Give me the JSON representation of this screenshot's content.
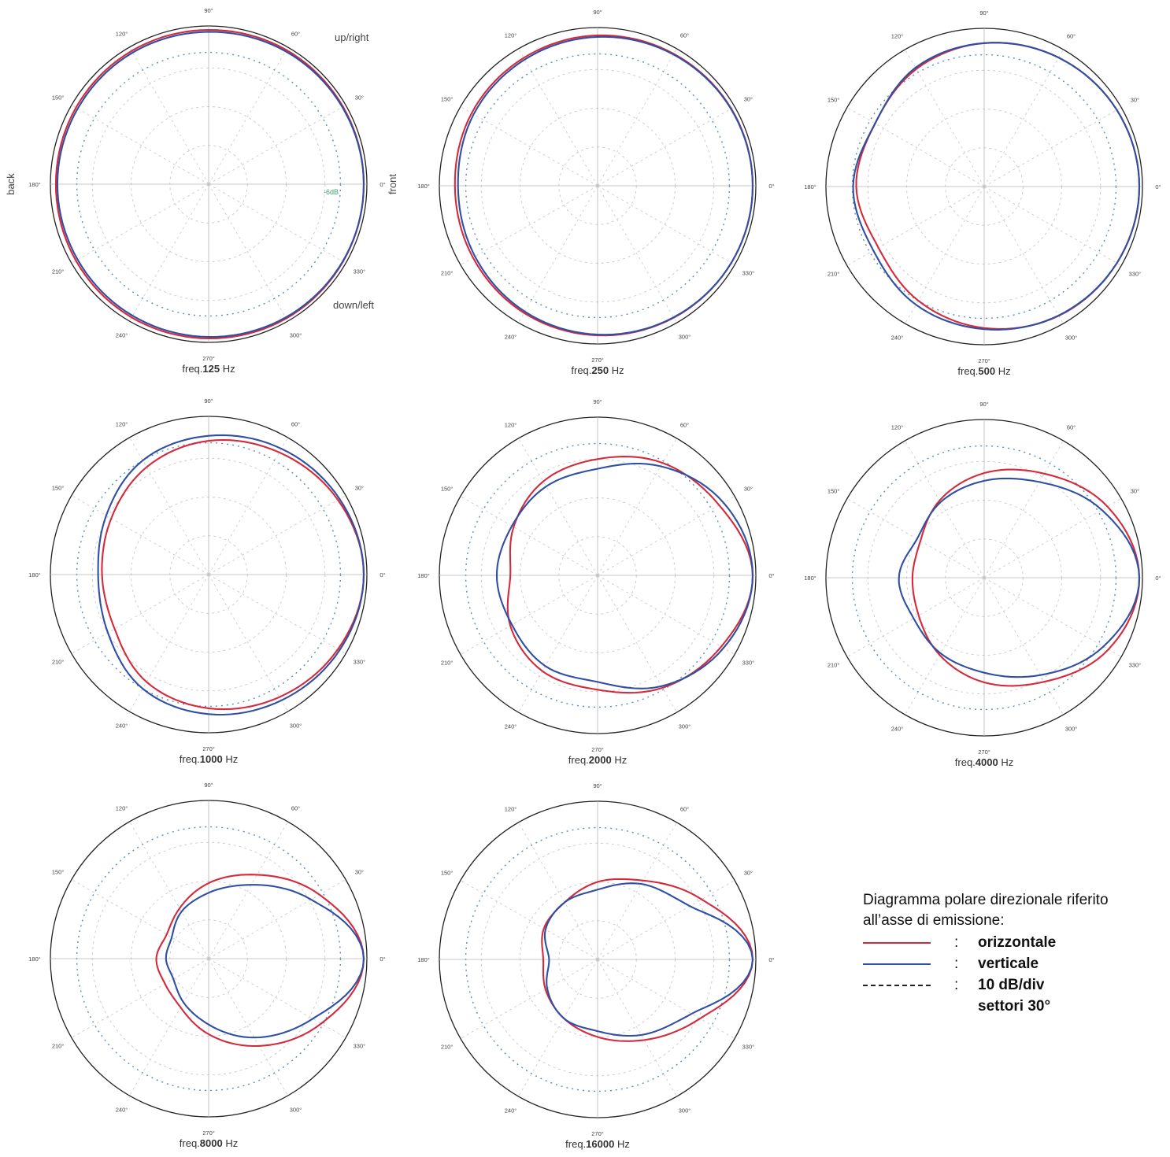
{
  "chart_data": [
    {
      "type": "polar",
      "caption_prefix": "freq.",
      "freq": "125",
      "unit": "Hz",
      "angle_labels": [
        "0°",
        "30°",
        "60°",
        "90°",
        "120°",
        "150°",
        "180°",
        "210°",
        "240°",
        "270°",
        "300°",
        "330°"
      ],
      "annotations": {
        "back": "back",
        "front": "front",
        "up": "up/right",
        "down": "down/left",
        "ref": "-6dB"
      },
      "r_unit": "dB",
      "r_range": [
        -40,
        0
      ],
      "series": [
        {
          "color": "#d42a3c",
          "angles_deg": [
            0,
            30,
            60,
            90,
            120,
            150,
            180,
            210,
            240,
            270,
            300,
            330
          ],
          "values": [
            0,
            0,
            0,
            -0.2,
            -0.3,
            -0.5,
            -0.6,
            -0.5,
            -0.3,
            -0.2,
            0,
            0
          ]
        },
        {
          "color": "#2f4fa3",
          "angles_deg": [
            0,
            30,
            60,
            90,
            120,
            150,
            180,
            210,
            240,
            270,
            300,
            330
          ],
          "values": [
            0,
            -0.2,
            -0.4,
            -0.7,
            -0.8,
            -1.0,
            -1.0,
            -1.0,
            -0.8,
            -0.6,
            -0.3,
            -0.1
          ]
        }
      ]
    },
    {
      "type": "polar",
      "caption_prefix": "freq.",
      "freq": "250",
      "unit": "Hz",
      "angle_labels": [
        "0°",
        "30°",
        "60°",
        "90°",
        "120°",
        "150°",
        "180°",
        "210°",
        "240°",
        "270°",
        "300°",
        "330°"
      ],
      "r_unit": "dB",
      "r_range": [
        -40,
        0
      ],
      "series": [
        {
          "color": "#d42a3c",
          "angles_deg": [
            0,
            30,
            60,
            90,
            120,
            150,
            180,
            210,
            240,
            270,
            300,
            330
          ],
          "values": [
            0,
            -0.2,
            -0.7,
            -1.2,
            -1.9,
            -2.5,
            -3.2,
            -2.9,
            -2.1,
            -1.4,
            -0.7,
            -0.2
          ]
        },
        {
          "color": "#2f4fa3",
          "angles_deg": [
            0,
            30,
            60,
            90,
            120,
            150,
            180,
            210,
            240,
            270,
            300,
            330
          ],
          "values": [
            0,
            -0.3,
            -0.9,
            -1.6,
            -2.4,
            -3.1,
            -4.0,
            -3.5,
            -2.5,
            -1.6,
            -0.8,
            -0.2
          ]
        }
      ]
    },
    {
      "type": "polar",
      "caption_prefix": "freq.",
      "freq": "500",
      "unit": "Hz",
      "angle_labels": [
        "0°",
        "30°",
        "60°",
        "90°",
        "120°",
        "150°",
        "180°",
        "210°",
        "240°",
        "270°",
        "300°",
        "330°"
      ],
      "r_unit": "dB",
      "r_range": [
        -40,
        0
      ],
      "series": [
        {
          "color": "#d42a3c",
          "angles_deg": [
            0,
            30,
            60,
            90,
            120,
            150,
            180,
            210,
            240,
            270,
            300,
            330
          ],
          "values": [
            0,
            -0.5,
            -1.6,
            -3.0,
            -5.0,
            -7.5,
            -7.0,
            -8.5,
            -6.0,
            -3.5,
            -1.5,
            -0.5
          ]
        },
        {
          "color": "#2f4fa3",
          "angles_deg": [
            0,
            30,
            60,
            90,
            120,
            150,
            180,
            210,
            240,
            270,
            300,
            330
          ],
          "values": [
            0,
            -0.5,
            -1.6,
            -3.0,
            -4.6,
            -7.5,
            -6.2,
            -7.0,
            -4.8,
            -3.2,
            -1.6,
            -0.5
          ]
        }
      ]
    },
    {
      "type": "polar",
      "caption_prefix": "freq.",
      "freq": "1000",
      "unit": "Hz",
      "angle_labels": [
        "0°",
        "30°",
        "60°",
        "90°",
        "120°",
        "150°",
        "180°",
        "210°",
        "240°",
        "270°",
        "300°",
        "330°"
      ],
      "r_unit": "dB",
      "r_range": [
        -40,
        0
      ],
      "series": [
        {
          "color": "#d42a3c",
          "angles_deg": [
            0,
            30,
            60,
            90,
            120,
            150,
            180,
            210,
            240,
            270,
            300,
            330
          ],
          "values": [
            0,
            -1.5,
            -3.6,
            -5.5,
            -8.0,
            -11.0,
            -12.5,
            -12.0,
            -8.0,
            -5.5,
            -3.5,
            -1.5
          ]
        },
        {
          "color": "#2f4fa3",
          "angles_deg": [
            0,
            30,
            60,
            90,
            120,
            150,
            180,
            210,
            240,
            270,
            300,
            330
          ],
          "values": [
            0,
            -1.0,
            -2.5,
            -4.2,
            -6.0,
            -9.5,
            -11.5,
            -10.0,
            -6.0,
            -4.0,
            -2.5,
            -1.0
          ]
        }
      ]
    },
    {
      "type": "polar",
      "caption_prefix": "freq.",
      "freq": "2000",
      "unit": "Hz",
      "angle_labels": [
        "0°",
        "30°",
        "60°",
        "90°",
        "120°",
        "150°",
        "180°",
        "210°",
        "240°",
        "270°",
        "300°",
        "330°"
      ],
      "r_unit": "dB",
      "r_range": [
        -40,
        0
      ],
      "series": [
        {
          "color": "#d42a3c",
          "angles_deg": [
            0,
            30,
            60,
            90,
            120,
            150,
            180,
            210,
            240,
            270,
            300,
            330
          ],
          "values": [
            0,
            -3.8,
            -6.5,
            -10.0,
            -12.0,
            -15.0,
            -17.5,
            -14.0,
            -11.5,
            -10.5,
            -6.5,
            -3.2
          ]
        },
        {
          "color": "#2f4fa3",
          "angles_deg": [
            0,
            30,
            60,
            90,
            120,
            150,
            180,
            210,
            240,
            270,
            300,
            330
          ],
          "values": [
            0,
            -2.5,
            -7.5,
            -12.5,
            -13.5,
            -14.5,
            -14.0,
            -14.5,
            -13.0,
            -12.5,
            -7.0,
            -2.5
          ]
        }
      ]
    },
    {
      "type": "polar",
      "caption_prefix": "freq.",
      "freq": "4000",
      "unit": "Hz",
      "angle_labels": [
        "0°",
        "30°",
        "60°",
        "90°",
        "120°",
        "150°",
        "180°",
        "210°",
        "240°",
        "270°",
        "300°",
        "330°"
      ],
      "r_unit": "dB",
      "r_range": [
        -40,
        0
      ],
      "series": [
        {
          "color": "#d42a3c",
          "angles_deg": [
            0,
            30,
            60,
            90,
            120,
            150,
            180,
            210,
            240,
            270,
            300,
            330
          ],
          "values": [
            0,
            -3.3,
            -9.0,
            -13.0,
            -17.0,
            -21.0,
            -21.5,
            -20.5,
            -17.0,
            -13.0,
            -9.0,
            -3.0
          ]
        },
        {
          "color": "#2f4fa3",
          "angles_deg": [
            0,
            30,
            60,
            90,
            120,
            150,
            180,
            210,
            240,
            270,
            300,
            330
          ],
          "values": [
            0,
            -5.0,
            -11.5,
            -15.0,
            -17.5,
            -20.0,
            -18.0,
            -19.0,
            -17.5,
            -15.5,
            -11.0,
            -4.5
          ]
        }
      ]
    },
    {
      "type": "polar",
      "caption_prefix": "freq.",
      "freq": "8000",
      "unit": "Hz",
      "angle_labels": [
        "0°",
        "30°",
        "60°",
        "90°",
        "120°",
        "150°",
        "180°",
        "210°",
        "240°",
        "270°",
        "300°",
        "330°"
      ],
      "r_unit": "dB",
      "r_range": [
        -40,
        0
      ],
      "series": [
        {
          "color": "#d42a3c",
          "angles_deg": [
            0,
            30,
            60,
            90,
            120,
            150,
            180,
            210,
            240,
            270,
            300,
            330
          ],
          "values": [
            0,
            -7.0,
            -15.0,
            -20.5,
            -25.0,
            -27.5,
            -26.5,
            -27.0,
            -25.5,
            -20.5,
            -14.0,
            -6.5
          ]
        },
        {
          "color": "#2f4fa3",
          "angles_deg": [
            0,
            30,
            60,
            90,
            120,
            150,
            180,
            210,
            240,
            270,
            300,
            330
          ],
          "values": [
            0,
            -9.5,
            -18.0,
            -23.0,
            -26.0,
            -29.0,
            -29.0,
            -29.5,
            -27.0,
            -23.0,
            -16.5,
            -9.0
          ]
        }
      ]
    },
    {
      "type": "polar",
      "caption_prefix": "freq.",
      "freq": "16000",
      "unit": "Hz",
      "angle_labels": [
        "0°",
        "30°",
        "60°",
        "90°",
        "120°",
        "150°",
        "180°",
        "210°",
        "240°",
        "270°",
        "300°",
        "330°"
      ],
      "r_unit": "dB",
      "r_range": [
        -40,
        0
      ],
      "series": [
        {
          "color": "#d42a3c",
          "angles_deg": [
            0,
            30,
            60,
            90,
            120,
            150,
            180,
            210,
            240,
            270,
            300,
            330
          ],
          "values": [
            0,
            -9.0,
            -16.5,
            -20.0,
            -23.0,
            -24.0,
            -26.0,
            -24.5,
            -22.5,
            -20.0,
            -16.0,
            -9.5
          ]
        },
        {
          "color": "#2f4fa3",
          "angles_deg": [
            0,
            30,
            60,
            90,
            120,
            150,
            180,
            210,
            240,
            270,
            300,
            330
          ],
          "values": [
            0,
            -12.5,
            -17.5,
            -22.0,
            -23.0,
            -24.5,
            -27.5,
            -25.0,
            -22.5,
            -21.5,
            -17.5,
            -12.0
          ]
        }
      ]
    }
  ],
  "legend": {
    "title_line1": "Diagramma polare direzionale riferito",
    "title_line2": "all’asse di emissione:",
    "sep": ":",
    "items": [
      {
        "style": "red",
        "label": "orizzontale"
      },
      {
        "style": "blue",
        "label": "verticale"
      },
      {
        "style": "dashed",
        "label": "10 dB/div"
      },
      {
        "style": "none",
        "label": "settori 30°"
      }
    ]
  },
  "colors": {
    "horizontal": "#d42a3c",
    "vertical": "#2f4fa3",
    "grid": "#c8c8c8",
    "ref_dots": "#5a8fb5",
    "ref_label": "#3aa06a"
  }
}
